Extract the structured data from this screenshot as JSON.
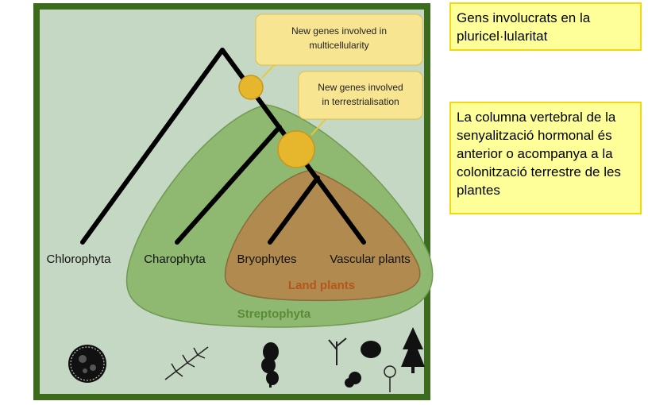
{
  "diagram": {
    "labels": {
      "chlorophyta": "Chlorophyta",
      "charophyta": "Charophyta",
      "bryophytes": "Bryophytes",
      "vascular_plants": "Vascular plants",
      "land_plants": "Land plants",
      "streptophyta": "Streptophyta"
    },
    "callouts": {
      "multicellularity": [
        "New genes involved in",
        "multicellularity"
      ],
      "terrestrialisation": [
        "New genes involved",
        "in terrestrialisation"
      ]
    },
    "colors": {
      "frame": "#3d6b1e",
      "background": "#c5d8c3",
      "streptophyta_fill": "#8fb871",
      "land_plants_fill": "#b08a4e",
      "land_plants_text": "#b5561a",
      "streptophyta_text": "#5b8a3a",
      "node": "#e6b72c",
      "callout_fill": "#f7e592"
    }
  },
  "notes": [
    "Gens involucrats en la pluricel·lularitat",
    "La columna vertebral de la senyalització hormonal és anterior o acompanya a la colonització terrestre de les plantes"
  ]
}
